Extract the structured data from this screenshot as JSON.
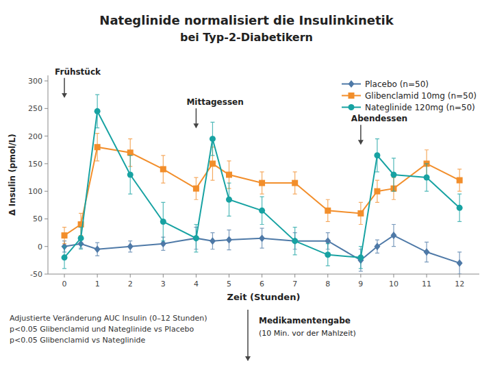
{
  "chart_data": {
    "type": "line",
    "title": "Nateglinide normalisiert die Insulinkinetik",
    "subtitle": "bei Typ-2-Diabetikern",
    "x_label": "Zeit (Stunden)",
    "y_label": "Δ Insulin (pmol/L)",
    "x": [
      0,
      0.5,
      1,
      2,
      3,
      4,
      4.5,
      5,
      6,
      7,
      8,
      9,
      9.5,
      10,
      11,
      12
    ],
    "series": [
      {
        "name": "Placebo (n=50)",
        "color": "#4e79a7",
        "marker": "diamond",
        "values": [
          0,
          5,
          -5,
          0,
          5,
          15,
          10,
          12,
          15,
          10,
          10,
          -25,
          0,
          20,
          -10,
          -30
        ],
        "errors": [
          10,
          8,
          12,
          10,
          12,
          20,
          15,
          18,
          18,
          15,
          15,
          20,
          12,
          20,
          18,
          20
        ]
      },
      {
        "name": "Glibenclamid 10mg (n=50)",
        "color": "#f28e2b",
        "marker": "square",
        "values": [
          20,
          40,
          180,
          170,
          140,
          105,
          150,
          130,
          115,
          115,
          65,
          60,
          100,
          105,
          150,
          120
        ],
        "errors": [
          15,
          20,
          25,
          25,
          25,
          20,
          30,
          25,
          20,
          20,
          20,
          20,
          20,
          20,
          25,
          20
        ]
      },
      {
        "name": "Nateglinide 120mg (n=50)",
        "color": "#17a2a2",
        "marker": "circle",
        "values": [
          -20,
          15,
          245,
          130,
          45,
          15,
          195,
          85,
          65,
          10,
          -15,
          -20,
          165,
          130,
          125,
          70
        ],
        "errors": [
          20,
          20,
          30,
          35,
          35,
          25,
          30,
          30,
          25,
          25,
          20,
          20,
          30,
          30,
          25,
          25
        ]
      }
    ],
    "xlim": [
      -0.5,
      12.6
    ],
    "xticks": [
      0,
      1,
      2,
      3,
      4,
      5,
      6,
      7,
      8,
      9,
      10,
      11,
      12
    ],
    "ylim": [
      -50,
      310
    ],
    "yticks": [
      -50,
      0,
      50,
      100,
      150,
      200,
      250,
      300
    ],
    "grid": false,
    "legend": "upper right",
    "annotations": [
      {
        "text": "Frühstück",
        "x": 0,
        "y": 268
      },
      {
        "text": "Mittagessen",
        "x": 4,
        "y": 213
      },
      {
        "text": "Abendessen",
        "x": 9,
        "y": 183
      }
    ],
    "notes": [
      "Adjustierte Veränderung AUC Insulin (0–12 Stunden)",
      "p<0.05 Glibenclamid und Nateglinide vs Placebo",
      "p<0.05 Glibenclamid vs Nateglinide"
    ],
    "dosing_note": [
      "Medikamentengabe",
      "(10 Min. vor der Mahlzeit)"
    ]
  }
}
